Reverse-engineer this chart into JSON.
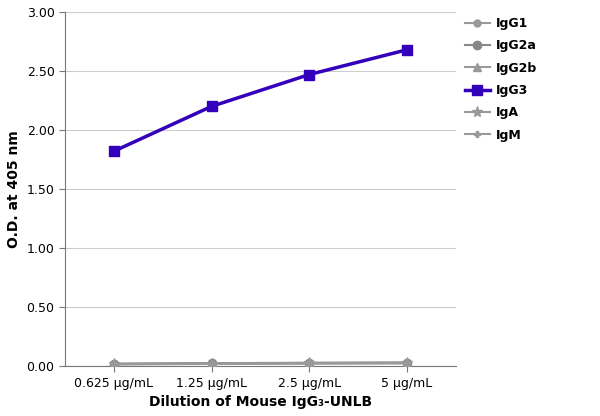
{
  "x_labels": [
    "0.625 μg/mL",
    "1.25 μg/mL",
    "2.5 μg/mL",
    "5 μg/mL"
  ],
  "x_values": [
    0,
    1,
    2,
    3
  ],
  "series": [
    {
      "label": "IgG1",
      "values": [
        0.018,
        0.022,
        0.025,
        0.027
      ],
      "color": "#999999",
      "marker": "o",
      "linewidth": 1.5,
      "markersize": 5,
      "zorder": 3,
      "markerfacecolor": "#999999"
    },
    {
      "label": "IgG2a",
      "values": [
        0.02,
        0.025,
        0.028,
        0.03
      ],
      "color": "#888888",
      "marker": "o",
      "linewidth": 1.5,
      "markersize": 6,
      "zorder": 3,
      "markerfacecolor": "#888888"
    },
    {
      "label": "IgG2b",
      "values": [
        0.019,
        0.023,
        0.027,
        0.029
      ],
      "color": "#999999",
      "marker": "^",
      "linewidth": 1.5,
      "markersize": 6,
      "zorder": 3,
      "markerfacecolor": "#999999"
    },
    {
      "label": "IgG3",
      "values": [
        1.82,
        2.2,
        2.47,
        2.68
      ],
      "color": "#3300bb",
      "marker": "s",
      "linewidth": 2.5,
      "markersize": 7,
      "zorder": 5,
      "markerfacecolor": "#3300bb"
    },
    {
      "label": "IgA",
      "values": [
        0.016,
        0.02,
        0.023,
        0.025
      ],
      "color": "#999999",
      "marker": "*",
      "linewidth": 1.5,
      "markersize": 8,
      "zorder": 3,
      "markerfacecolor": "#999999"
    },
    {
      "label": "IgM",
      "values": [
        0.014,
        0.018,
        0.021,
        0.023
      ],
      "color": "#999999",
      "marker": "P",
      "linewidth": 1.5,
      "markersize": 5,
      "zorder": 3,
      "markerfacecolor": "#999999"
    }
  ],
  "xlabel": "Dilution of Mouse IgG₃-UNLB",
  "ylabel": "O.D. at 405 nm",
  "ylim": [
    0.0,
    3.0
  ],
  "yticks": [
    0.0,
    0.5,
    1.0,
    1.5,
    2.0,
    2.5,
    3.0
  ],
  "ytick_labels": [
    "0.00",
    "0.50",
    "1.00",
    "1.50",
    "2.00",
    "2.50",
    "3.00"
  ],
  "grid_color": "#cccccc",
  "background_color": "#ffffff",
  "axis_fontsize": 10,
  "tick_fontsize": 9,
  "legend_fontsize": 9
}
